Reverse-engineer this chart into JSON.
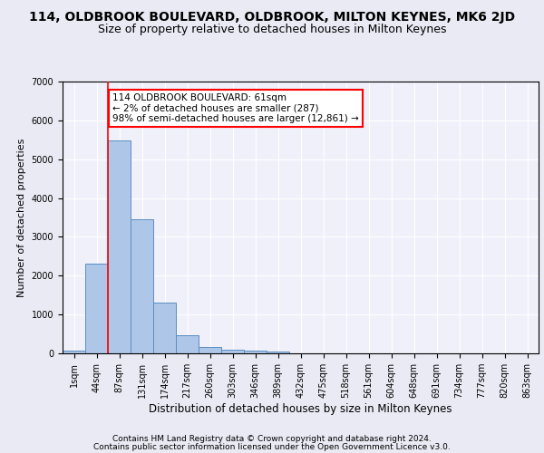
{
  "title_line1": "114, OLDBROOK BOULEVARD, OLDBROOK, MILTON KEYNES, MK6 2JD",
  "title_line2": "Size of property relative to detached houses in Milton Keynes",
  "xlabel": "Distribution of detached houses by size in Milton Keynes",
  "ylabel": "Number of detached properties",
  "footer_line1": "Contains HM Land Registry data © Crown copyright and database right 2024.",
  "footer_line2": "Contains public sector information licensed under the Open Government Licence v3.0.",
  "categories": [
    "1sqm",
    "44sqm",
    "87sqm",
    "131sqm",
    "174sqm",
    "217sqm",
    "260sqm",
    "303sqm",
    "346sqm",
    "389sqm",
    "432sqm",
    "475sqm",
    "518sqm",
    "561sqm",
    "604sqm",
    "648sqm",
    "691sqm",
    "734sqm",
    "777sqm",
    "820sqm",
    "863sqm"
  ],
  "values": [
    80,
    2300,
    5480,
    3450,
    1310,
    470,
    165,
    90,
    65,
    45,
    0,
    0,
    0,
    0,
    0,
    0,
    0,
    0,
    0,
    0,
    0
  ],
  "bar_color": "#aec6e8",
  "bar_edge_color": "#5a8fc2",
  "vline_x": 1.5,
  "vline_color": "red",
  "annotation_text": "114 OLDBROOK BOULEVARD: 61sqm\n← 2% of detached houses are smaller (287)\n98% of semi-detached houses are larger (12,861) →",
  "annotation_box_color": "white",
  "annotation_box_edge_color": "red",
  "ylim": [
    0,
    7000
  ],
  "yticks": [
    0,
    1000,
    2000,
    3000,
    4000,
    5000,
    6000,
    7000
  ],
  "bg_color": "#eaeaf4",
  "plot_bg_color": "#f0f0fa",
  "grid_color": "white",
  "title_fontsize": 10,
  "subtitle_fontsize": 9,
  "tick_fontsize": 7,
  "ylabel_fontsize": 8,
  "xlabel_fontsize": 8.5,
  "footer_fontsize": 6.5,
  "annotation_fontsize": 7.5
}
